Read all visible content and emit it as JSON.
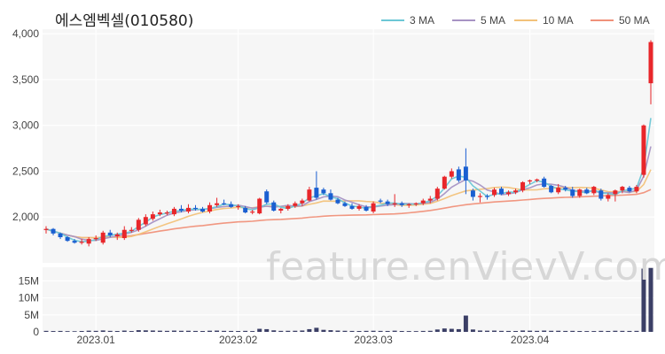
{
  "title": "에스엠벡셀(010580)",
  "watermark": "feature.enVievV.com",
  "colors": {
    "up": "#e8262a",
    "down": "#1a5fd1",
    "panel_bg": "#f6f6f6",
    "grid": "#ffffff",
    "volume": "#3b3f66"
  },
  "chart_data": {
    "type": "candlestick",
    "title": "에스엠벡셀(010580)",
    "price_axis": {
      "ticks": [
        "2,000",
        "2,500",
        "3,000",
        "3,500",
        "4,000"
      ],
      "tick_values": [
        2000,
        2500,
        3000,
        3500,
        4000
      ],
      "range": [
        1500,
        4050
      ]
    },
    "volume_axis": {
      "ticks": [
        "0",
        "5M",
        "10M",
        "15M"
      ],
      "tick_values": [
        0,
        5000000,
        10000000,
        15000000
      ],
      "range": [
        0,
        19000000
      ]
    },
    "x_ticks": [
      {
        "label": "2023.01",
        "index": 7
      },
      {
        "label": "2023.02",
        "index": 27
      },
      {
        "label": "2023.03",
        "index": 46
      },
      {
        "label": "2023.04",
        "index": 68
      }
    ],
    "legend": [
      {
        "label": "3 MA",
        "color": "#6cc7d6"
      },
      {
        "label": "5 MA",
        "color": "#a793c4"
      },
      {
        "label": "10 MA",
        "color": "#f2c27a"
      },
      {
        "label": "50 MA",
        "color": "#f0917a"
      }
    ],
    "ohlcv": [
      [
        1860,
        1900,
        1820,
        1870,
        300000
      ],
      [
        1870,
        1880,
        1800,
        1820,
        250000
      ],
      [
        1820,
        1830,
        1760,
        1780,
        280000
      ],
      [
        1780,
        1790,
        1730,
        1740,
        220000
      ],
      [
        1740,
        1760,
        1710,
        1720,
        200000
      ],
      [
        1720,
        1760,
        1700,
        1730,
        260000
      ],
      [
        1710,
        1780,
        1680,
        1760,
        350000
      ],
      [
        1760,
        1800,
        1740,
        1770,
        300000
      ],
      [
        1720,
        1850,
        1700,
        1830,
        420000
      ],
      [
        1830,
        1860,
        1780,
        1800,
        300000
      ],
      [
        1790,
        1830,
        1750,
        1810,
        260000
      ],
      [
        1770,
        1900,
        1750,
        1860,
        380000
      ],
      [
        1860,
        1890,
        1830,
        1860,
        250000
      ],
      [
        1860,
        1990,
        1840,
        1970,
        500000
      ],
      [
        1920,
        2030,
        1900,
        2000,
        450000
      ],
      [
        1980,
        2060,
        1960,
        2030,
        400000
      ],
      [
        2030,
        2080,
        2010,
        2050,
        350000
      ],
      [
        2050,
        2070,
        2020,
        2050,
        300000
      ],
      [
        2030,
        2110,
        2010,
        2090,
        380000
      ],
      [
        2090,
        2130,
        2050,
        2070,
        320000
      ],
      [
        2060,
        2140,
        2040,
        2100,
        330000
      ],
      [
        2100,
        2130,
        2070,
        2090,
        280000
      ],
      [
        2090,
        2110,
        2050,
        2060,
        260000
      ],
      [
        2060,
        2160,
        2040,
        2130,
        340000
      ],
      [
        2130,
        2210,
        2110,
        2150,
        380000
      ],
      [
        2150,
        2190,
        2130,
        2140,
        300000
      ],
      [
        2140,
        2170,
        2100,
        2110,
        280000
      ],
      [
        2110,
        2140,
        2080,
        2120,
        260000
      ],
      [
        2100,
        2120,
        2040,
        2050,
        300000
      ],
      [
        2050,
        2080,
        2030,
        2060,
        250000
      ],
      [
        2040,
        2210,
        2030,
        2200,
        900000
      ],
      [
        2280,
        2300,
        2140,
        2160,
        800000
      ],
      [
        2160,
        2180,
        2060,
        2070,
        450000
      ],
      [
        2070,
        2100,
        2040,
        2090,
        300000
      ],
      [
        2090,
        2140,
        2070,
        2120,
        320000
      ],
      [
        2120,
        2170,
        2100,
        2150,
        330000
      ],
      [
        2150,
        2200,
        2120,
        2180,
        400000
      ],
      [
        2180,
        2330,
        2170,
        2300,
        800000
      ],
      [
        2320,
        2500,
        2190,
        2210,
        1200000
      ],
      [
        2300,
        2320,
        2240,
        2260,
        600000
      ],
      [
        2260,
        2300,
        2180,
        2190,
        500000
      ],
      [
        2190,
        2210,
        2140,
        2150,
        380000
      ],
      [
        2150,
        2170,
        2110,
        2120,
        320000
      ],
      [
        2120,
        2150,
        2080,
        2090,
        280000
      ],
      [
        2090,
        2140,
        2070,
        2120,
        260000
      ],
      [
        2110,
        2130,
        2060,
        2070,
        300000
      ],
      [
        2060,
        2170,
        2040,
        2150,
        330000
      ],
      [
        2180,
        2200,
        2150,
        2170,
        290000
      ],
      [
        2170,
        2190,
        2120,
        2140,
        270000
      ],
      [
        2140,
        2250,
        2110,
        2150,
        350000
      ],
      [
        2150,
        2170,
        2110,
        2130,
        260000
      ],
      [
        2130,
        2150,
        2100,
        2140,
        240000
      ],
      [
        2140,
        2160,
        2120,
        2150,
        230000
      ],
      [
        2150,
        2200,
        2130,
        2180,
        280000
      ],
      [
        2180,
        2230,
        2150,
        2200,
        320000
      ],
      [
        2200,
        2330,
        2180,
        2310,
        700000
      ],
      [
        2310,
        2450,
        2300,
        2440,
        1000000
      ],
      [
        2440,
        2530,
        2420,
        2500,
        900000
      ],
      [
        2520,
        2550,
        2380,
        2400,
        800000
      ],
      [
        2550,
        2750,
        2250,
        2400,
        4800000
      ],
      [
        2290,
        2310,
        2180,
        2220,
        700000
      ],
      [
        2220,
        2260,
        2160,
        2230,
        400000
      ],
      [
        2230,
        2250,
        2190,
        2220,
        350000
      ],
      [
        2240,
        2320,
        2220,
        2300,
        380000
      ],
      [
        2310,
        2330,
        2240,
        2250,
        300000
      ],
      [
        2250,
        2290,
        2230,
        2270,
        280000
      ],
      [
        2270,
        2310,
        2250,
        2290,
        260000
      ],
      [
        2290,
        2390,
        2270,
        2380,
        400000
      ],
      [
        2390,
        2410,
        2360,
        2400,
        350000
      ],
      [
        2400,
        2420,
        2380,
        2410,
        300000
      ],
      [
        2420,
        2440,
        2320,
        2330,
        380000
      ],
      [
        2340,
        2350,
        2260,
        2270,
        320000
      ],
      [
        2270,
        2360,
        2250,
        2320,
        330000
      ],
      [
        2320,
        2340,
        2280,
        2300,
        280000
      ],
      [
        2300,
        2330,
        2210,
        2230,
        300000
      ],
      [
        2230,
        2310,
        2210,
        2300,
        260000
      ],
      [
        2300,
        2320,
        2250,
        2260,
        240000
      ],
      [
        2260,
        2340,
        2240,
        2330,
        250000
      ],
      [
        2290,
        2310,
        2180,
        2200,
        300000
      ],
      [
        2200,
        2260,
        2170,
        2240,
        270000
      ],
      [
        2250,
        2300,
        2170,
        2290,
        330000
      ],
      [
        2290,
        2340,
        2260,
        2330,
        300000
      ],
      [
        2320,
        2340,
        2270,
        2280,
        280000
      ],
      [
        2280,
        2350,
        2260,
        2330,
        300000
      ],
      [
        2460,
        3010,
        2430,
        3000,
        18600000
      ],
      [
        3460,
        3930,
        3230,
        3910,
        18800000
      ]
    ]
  }
}
